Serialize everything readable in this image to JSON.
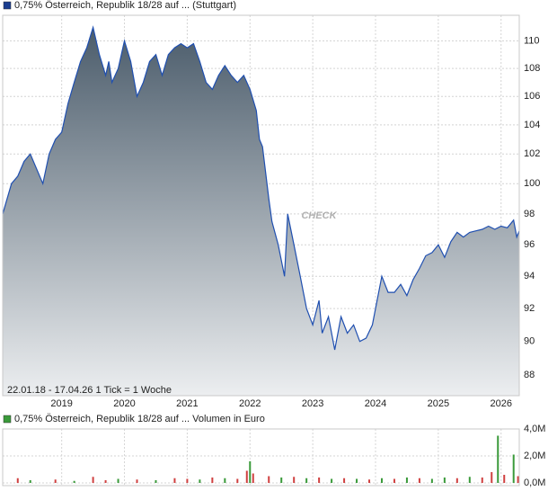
{
  "chart_data": [
    {
      "type": "area",
      "legend": "0,75% Österreich, Republik 18/28 auf ... (Stuttgart)",
      "legend_color": "#1a3d8f",
      "footer": "22.01.18 - 17.04.26   1 Tick = 1 Woche",
      "watermark": "CHECK",
      "log_scale": true,
      "grid": true,
      "color": "#1f4fb0",
      "fill_top": "#4b5c6b",
      "fill_bottom": "#eceef0",
      "xlim": [
        2018.06,
        2026.29
      ],
      "xticks": [
        2019,
        2020,
        2021,
        2022,
        2023,
        2024,
        2025,
        2026
      ],
      "ylim": [
        86.8,
        111.9
      ],
      "yticks": [
        88,
        90,
        92,
        94,
        96,
        98,
        100,
        102,
        104,
        106,
        108,
        110
      ],
      "x": [
        2018.06,
        2018.2,
        2018.3,
        2018.4,
        2018.5,
        2018.6,
        2018.7,
        2018.8,
        2018.9,
        2019.0,
        2019.1,
        2019.2,
        2019.3,
        2019.4,
        2019.5,
        2019.6,
        2019.7,
        2019.75,
        2019.8,
        2019.9,
        2020.0,
        2020.1,
        2020.2,
        2020.3,
        2020.4,
        2020.5,
        2020.6,
        2020.7,
        2020.8,
        2020.9,
        2021.0,
        2021.1,
        2021.2,
        2021.3,
        2021.4,
        2021.5,
        2021.6,
        2021.7,
        2021.8,
        2021.9,
        2022.0,
        2022.1,
        2022.15,
        2022.2,
        2022.3,
        2022.35,
        2022.45,
        2022.55,
        2022.6,
        2022.7,
        2022.8,
        2022.9,
        2023.0,
        2023.1,
        2023.15,
        2023.25,
        2023.35,
        2023.45,
        2023.55,
        2023.65,
        2023.75,
        2023.85,
        2023.95,
        2024.0,
        2024.1,
        2024.2,
        2024.3,
        2024.4,
        2024.5,
        2024.6,
        2024.7,
        2024.8,
        2024.9,
        2025.0,
        2025.1,
        2025.2,
        2025.3,
        2025.4,
        2025.5,
        2025.6,
        2025.7,
        2025.8,
        2025.9,
        2026.0,
        2026.1,
        2026.2,
        2026.25,
        2026.29
      ],
      "values": [
        98,
        100,
        100.5,
        101.5,
        102,
        101,
        100,
        102,
        103,
        103.5,
        105.5,
        107,
        108.5,
        109.5,
        111,
        109,
        107.5,
        108.5,
        107,
        108,
        110,
        108.5,
        106,
        107,
        108.5,
        109,
        107.5,
        109,
        109.5,
        109.8,
        109.5,
        109.8,
        108.5,
        107,
        106.5,
        107.5,
        108.2,
        107.5,
        107,
        107.5,
        106.5,
        105,
        103,
        102.5,
        99,
        97.5,
        96,
        94,
        98,
        96,
        94,
        92,
        91,
        92.5,
        90.5,
        91.5,
        89.5,
        91.5,
        90.5,
        91,
        90,
        90.2,
        91,
        92,
        94,
        93,
        93,
        93.5,
        92.8,
        93.8,
        94.5,
        95.3,
        95.5,
        96,
        95.2,
        96.2,
        96.8,
        96.5,
        96.8,
        96.9,
        97,
        97.2,
        97,
        97.2,
        97.1,
        97.6,
        96.5,
        96.9
      ]
    },
    {
      "type": "volume",
      "legend": "0,75% Österreich, Republik 18/28 auf ... Volumen in Euro",
      "legend_color": "#3a9a3a",
      "grid": true,
      "xlim": [
        2018.06,
        2026.29
      ],
      "xticks": [
        2019,
        2020,
        2021,
        2022,
        2023,
        2024,
        2025,
        2026
      ],
      "ylim": [
        -200000,
        4000000
      ],
      "yticks": [
        {
          "value": 0,
          "label": "0,0M"
        },
        {
          "value": 2000000,
          "label": "2,0M"
        },
        {
          "value": 4000000,
          "label": "4,0M"
        }
      ],
      "x": [
        2018.3,
        2018.5,
        2018.9,
        2019.2,
        2019.5,
        2019.7,
        2019.9,
        2020.2,
        2020.5,
        2020.8,
        2021.0,
        2021.2,
        2021.4,
        2021.6,
        2021.8,
        2021.95,
        2022.0,
        2022.05,
        2022.3,
        2022.5,
        2022.7,
        2022.9,
        2023.1,
        2023.3,
        2023.5,
        2023.7,
        2023.9,
        2024.1,
        2024.3,
        2024.5,
        2024.7,
        2024.9,
        2025.1,
        2025.3,
        2025.5,
        2025.7,
        2025.85,
        2025.95,
        2026.05,
        2026.2,
        2026.27
      ],
      "values": [
        350000,
        200000,
        250000,
        150000,
        450000,
        200000,
        300000,
        250000,
        200000,
        350000,
        300000,
        250000,
        400000,
        350000,
        300000,
        900000,
        1600000,
        700000,
        500000,
        400000,
        450000,
        350000,
        400000,
        300000,
        350000,
        300000,
        250000,
        350000,
        300000,
        400000,
        350000,
        300000,
        400000,
        350000,
        450000,
        400000,
        800000,
        3500000,
        600000,
        2100000,
        500000
      ],
      "colors": [
        "#d04040",
        "#3a9a3a",
        "#d04040",
        "#3a9a3a",
        "#d04040",
        "#d04040",
        "#3a9a3a",
        "#d04040",
        "#3a9a3a",
        "#d04040",
        "#d04040",
        "#3a9a3a",
        "#d04040",
        "#3a9a3a",
        "#d04040",
        "#d04040",
        "#3a9a3a",
        "#d04040",
        "#d04040",
        "#3a9a3a",
        "#d04040",
        "#3a9a3a",
        "#d04040",
        "#3a9a3a",
        "#d04040",
        "#3a9a3a",
        "#d04040",
        "#3a9a3a",
        "#d04040",
        "#3a9a3a",
        "#d04040",
        "#3a9a3a",
        "#3a9a3a",
        "#d04040",
        "#3a9a3a",
        "#d04040",
        "#d04040",
        "#3a9a3a",
        "#d04040",
        "#3a9a3a",
        "#d04040"
      ]
    }
  ]
}
